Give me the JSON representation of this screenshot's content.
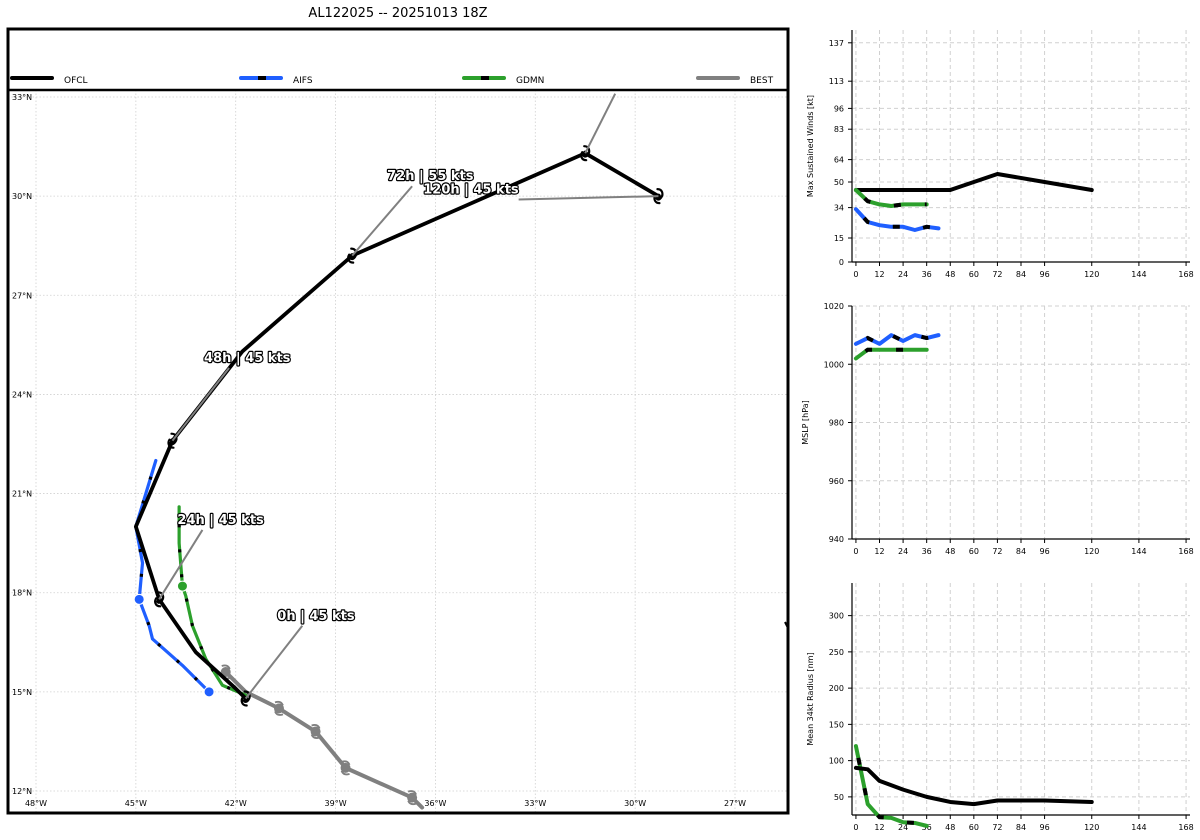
{
  "title": "AL122025 -- 20251013 18Z",
  "colors": {
    "ofcl": "#000000",
    "aifs": "#1f5fff",
    "gdmn": "#2ca02c",
    "best": "#808080",
    "grid": "#d0d0d0"
  },
  "legend": [
    {
      "name": "OFCL",
      "color": "#000000",
      "dash": false
    },
    {
      "name": "AIFS",
      "color": "#1f5fff",
      "dash": true
    },
    {
      "name": "GDMN",
      "color": "#2ca02c",
      "dash": true
    },
    {
      "name": "BEST",
      "color": "#808080",
      "dash": false
    }
  ],
  "chart_data": [
    {
      "type": "map",
      "title": "AL122025 -- 20251013 18Z",
      "lon_range": [
        -48.4,
        -24.9
      ],
      "lat_range": [
        11.8,
        33.0
      ],
      "lon_ticks": [
        -48,
        -45,
        -42,
        -39,
        -36,
        -33,
        -30,
        -27
      ],
      "lon_tick_labels": [
        "48°W",
        "45°W",
        "42°W",
        "39°W",
        "36°W",
        "33°W",
        "30°W",
        "27°W"
      ],
      "lat_ticks": [
        12,
        15,
        18,
        21,
        24,
        27,
        30,
        33
      ],
      "lat_tick_labels": [
        "12°N",
        "15°N",
        "18°N",
        "21°N",
        "24°N",
        "27°N",
        "30°N",
        "33°N"
      ],
      "series": [
        {
          "name": "BEST",
          "color": "#808080",
          "points": [
            [
              -36.4,
              11.5
            ],
            [
              -36.7,
              11.8
            ],
            [
              -38.7,
              12.7
            ],
            [
              -39.6,
              13.8
            ],
            [
              -40.7,
              14.5
            ],
            [
              -41.3,
              14.8
            ],
            [
              -41.7,
              15.0
            ],
            [
              -42.3,
              15.6
            ]
          ],
          "markers": [
            [
              -36.7,
              11.8
            ],
            [
              -38.7,
              12.7
            ],
            [
              -39.6,
              13.8
            ],
            [
              -40.7,
              14.5
            ],
            [
              -42.3,
              15.6
            ]
          ]
        },
        {
          "name": "GDMN",
          "color": "#2ca02c",
          "points": [
            [
              -41.7,
              14.9
            ],
            [
              -42.4,
              15.2
            ],
            [
              -42.9,
              16.0
            ],
            [
              -43.3,
              17.0
            ],
            [
              -43.5,
              17.9
            ],
            [
              -43.6,
              18.2
            ],
            [
              -43.7,
              19.5
            ],
            [
              -43.7,
              20.6
            ]
          ],
          "markers": [
            [
              -43.6,
              18.2
            ]
          ]
        },
        {
          "name": "AIFS",
          "color": "#1f5fff",
          "points": [
            [
              -42.8,
              15.0
            ],
            [
              -43.6,
              15.8
            ],
            [
              -44.5,
              16.6
            ],
            [
              -44.6,
              17.0
            ],
            [
              -44.9,
              17.8
            ],
            [
              -44.8,
              18.9
            ],
            [
              -45.0,
              20.0
            ],
            [
              -44.4,
              22.0
            ]
          ],
          "markers": [
            [
              -44.9,
              17.8
            ],
            [
              -42.8,
              15.0
            ]
          ]
        },
        {
          "name": "OFCL",
          "color": "#000000",
          "points": [
            [
              -41.7,
              14.8
            ],
            [
              -42.0,
              15.1
            ],
            [
              -43.2,
              16.2
            ],
            [
              -44.3,
              17.8
            ],
            [
              -45.0,
              20.0
            ],
            [
              -43.9,
              22.6
            ],
            [
              -41.8,
              25.3
            ],
            [
              -38.5,
              28.2
            ],
            [
              -31.5,
              31.3
            ],
            [
              -29.3,
              30.0
            ]
          ],
          "markers": [
            [
              -41.7,
              14.8
            ],
            [
              -44.3,
              17.8
            ],
            [
              -43.9,
              22.6
            ],
            [
              -38.5,
              28.2
            ],
            [
              -31.5,
              31.3
            ],
            [
              -29.3,
              30.0
            ]
          ]
        }
      ],
      "annotations": [
        {
          "text": "0h | 45 kts",
          "point": [
            -41.7,
            14.8
          ],
          "anchor": [
            -40.0,
            17.0
          ]
        },
        {
          "text": "24h | 45 kts",
          "point": [
            -44.3,
            17.8
          ],
          "anchor": [
            -43.0,
            19.9
          ]
        },
        {
          "text": "48h | 45 kts",
          "point": [
            -43.9,
            22.6
          ],
          "anchor": [
            -42.2,
            24.8
          ]
        },
        {
          "text": "72h | 55 kts",
          "point": [
            -38.5,
            28.2
          ],
          "anchor": [
            -36.7,
            30.3
          ]
        },
        {
          "text": "120h | 45 kts",
          "point": [
            -29.3,
            30.0
          ],
          "anchor": [
            -33.5,
            29.9
          ]
        },
        {
          "text": "",
          "point": [
            -31.5,
            31.3
          ],
          "anchor": [
            -30.6,
            33.1
          ]
        }
      ]
    },
    {
      "type": "line",
      "ylabel": "Max Sustained Winds [kt]",
      "x_ticks": [
        0,
        12,
        24,
        36,
        48,
        60,
        72,
        84,
        96,
        120,
        144,
        168
      ],
      "y_ticks": [
        0,
        15,
        34,
        50,
        64,
        83,
        96,
        113,
        137
      ],
      "xlim": [
        -2,
        170
      ],
      "ylim": [
        0,
        145
      ],
      "series": [
        {
          "name": "OFCL",
          "color": "#000000",
          "x": [
            0,
            12,
            24,
            36,
            48,
            72,
            96,
            120
          ],
          "y": [
            45,
            45,
            45,
            45,
            45,
            55,
            50,
            45
          ]
        },
        {
          "name": "GDMN",
          "color": "#2ca02c",
          "x": [
            0,
            6,
            12,
            18,
            24,
            30,
            36
          ],
          "y": [
            45,
            38,
            36,
            35,
            36,
            36,
            36
          ]
        },
        {
          "name": "AIFS",
          "color": "#1f5fff",
          "x": [
            0,
            6,
            12,
            18,
            24,
            30,
            36,
            42
          ],
          "y": [
            33,
            25,
            23,
            22,
            22,
            20,
            22,
            21
          ]
        }
      ]
    },
    {
      "type": "line",
      "ylabel": "MSLP [hPa]",
      "x_ticks": [
        0,
        12,
        24,
        36,
        48,
        60,
        72,
        84,
        96,
        120,
        144,
        168
      ],
      "y_ticks": [
        940,
        960,
        980,
        1000,
        1020
      ],
      "xlim": [
        -2,
        170
      ],
      "ylim": [
        940,
        1020
      ],
      "series": [
        {
          "name": "GDMN",
          "color": "#2ca02c",
          "x": [
            0,
            6,
            12,
            18,
            24,
            30,
            36
          ],
          "y": [
            1002,
            1005,
            1005,
            1005,
            1005,
            1005,
            1005
          ]
        },
        {
          "name": "AIFS",
          "color": "#1f5fff",
          "x": [
            0,
            6,
            12,
            18,
            24,
            30,
            36,
            42
          ],
          "y": [
            1007,
            1009,
            1007,
            1010,
            1008,
            1010,
            1009,
            1010
          ]
        }
      ]
    },
    {
      "type": "line",
      "ylabel": "Mean 34kt Radius [nm]",
      "x_ticks": [
        0,
        12,
        24,
        36,
        48,
        60,
        72,
        84,
        96,
        120,
        144,
        168
      ],
      "y_ticks": [
        50,
        100,
        150,
        200,
        250,
        300
      ],
      "xlim": [
        -2,
        170
      ],
      "ylim": [
        25,
        345
      ],
      "series": [
        {
          "name": "GDMN",
          "color": "#2ca02c",
          "x": [
            0,
            6,
            12,
            18,
            24,
            30,
            36
          ],
          "y": [
            120,
            40,
            22,
            21,
            15,
            14,
            10
          ]
        },
        {
          "name": "OFCL",
          "color": "#000000",
          "x": [
            0,
            6,
            12,
            24,
            36,
            48,
            60,
            72,
            96,
            120
          ],
          "y": [
            90,
            88,
            72,
            60,
            50,
            43,
            40,
            45,
            45,
            43
          ]
        }
      ]
    }
  ]
}
